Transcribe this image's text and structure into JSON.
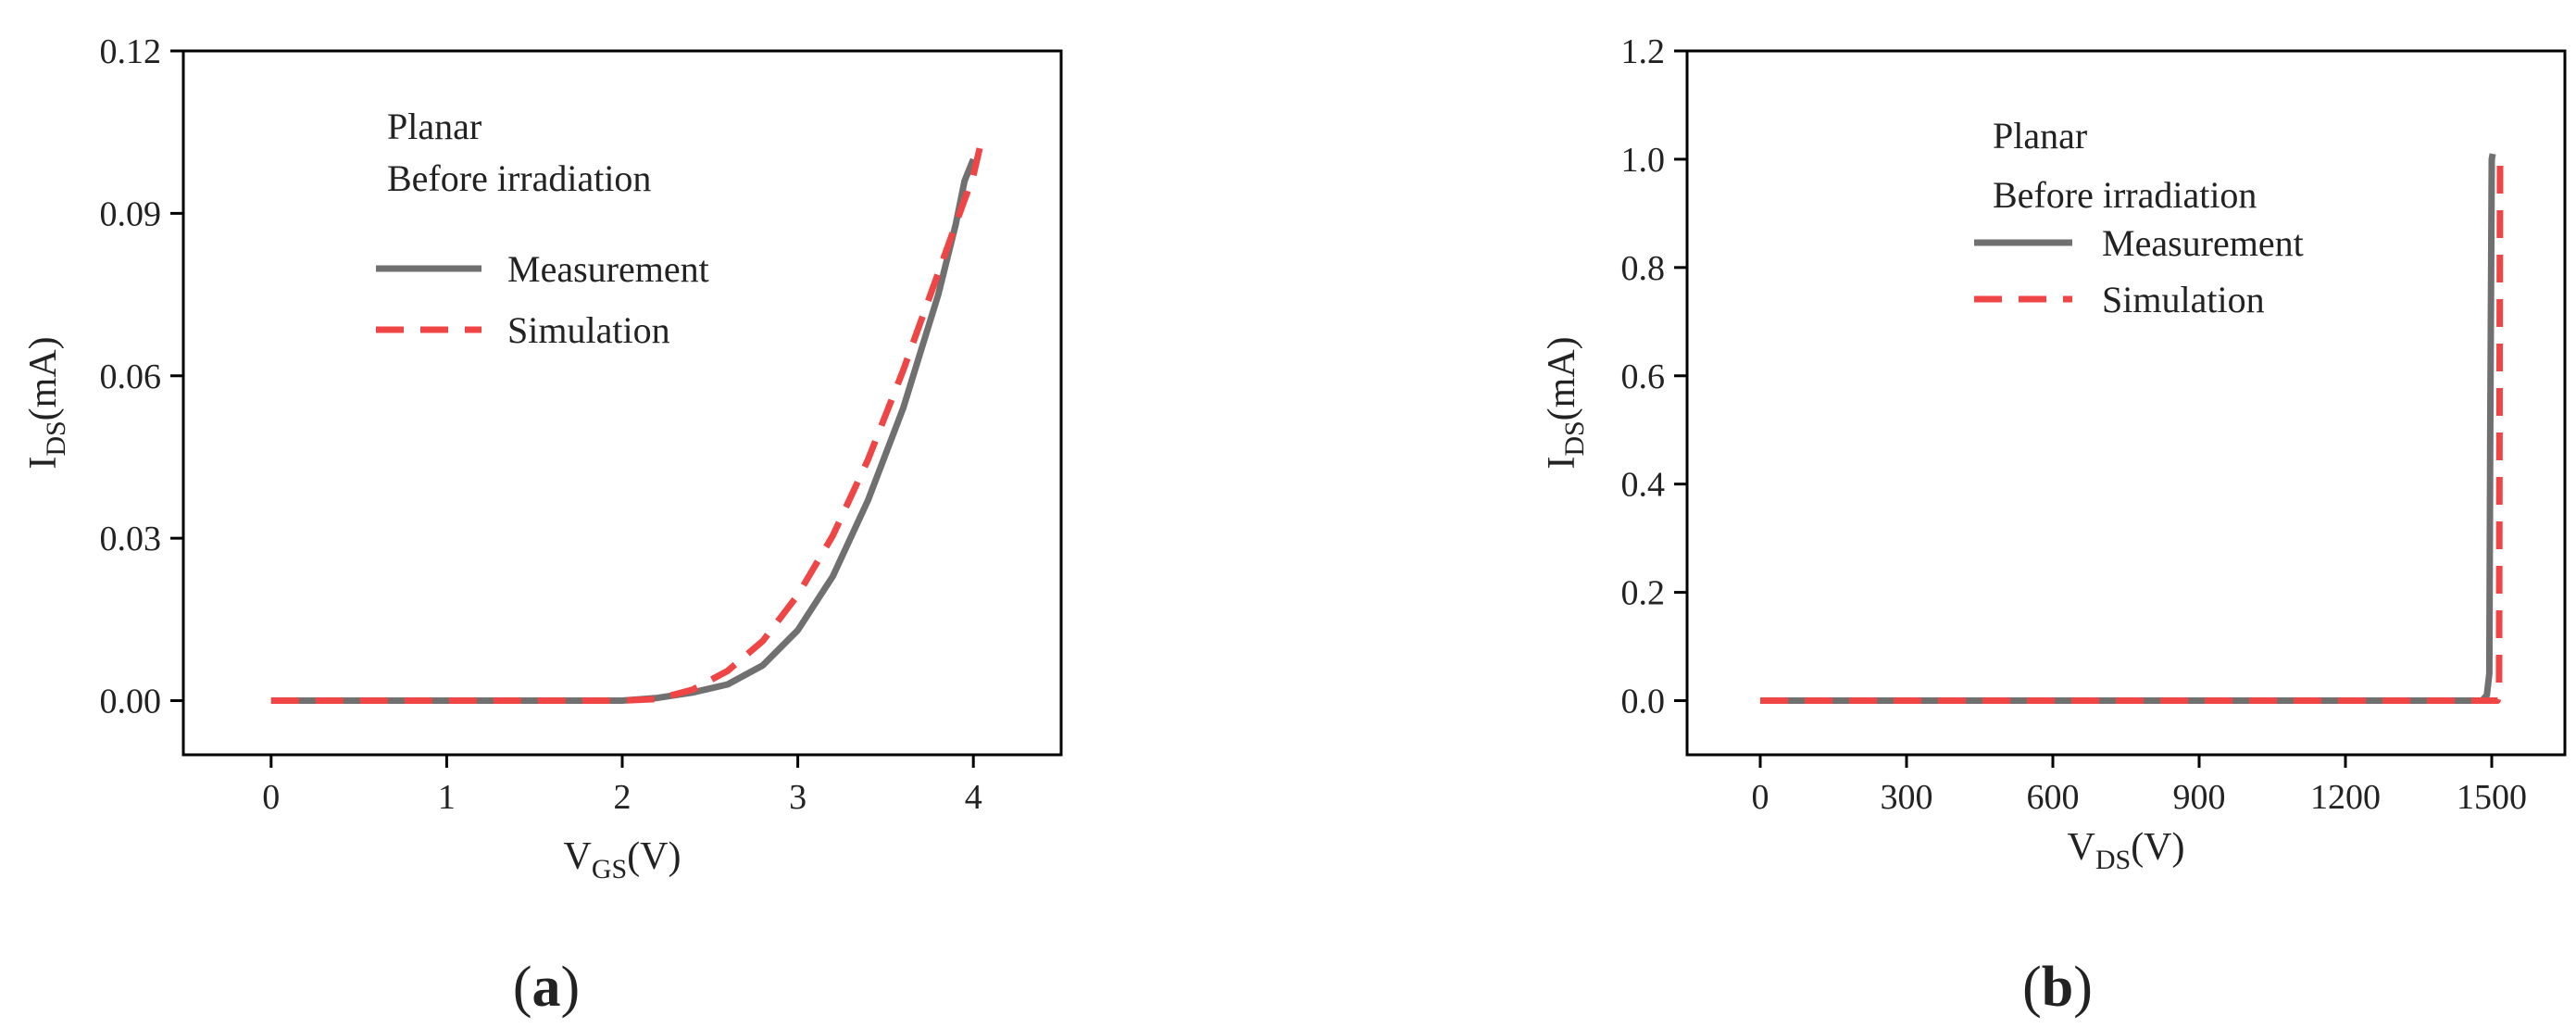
{
  "chart_data": [
    {
      "type": "line",
      "panel_label": "a",
      "xlabel": "V",
      "xlabel_sub": "GS",
      "xlabel_unit": "(V)",
      "ylabel": "I",
      "ylabel_sub": "DS",
      "ylabel_unit": "(mA)",
      "xlim": [
        -0.5,
        4.5
      ],
      "ylim": [
        -0.01,
        0.12
      ],
      "x_ticks": [
        0,
        1,
        2,
        3,
        4
      ],
      "y_ticks": [
        0.0,
        0.03,
        0.06,
        0.09,
        0.12
      ],
      "x_tick_labels": [
        "0",
        "1",
        "2",
        "3",
        "4"
      ],
      "y_tick_labels": [
        "0.00",
        "0.03",
        "0.06",
        "0.09",
        "0.12"
      ],
      "grid": false,
      "annotation_lines": [
        "Planar",
        "Before irradiation"
      ],
      "legend": "upper-left",
      "series": [
        {
          "name": "Measurement",
          "style": "solid",
          "color": "#707070",
          "x": [
            0,
            0.5,
            1.0,
            1.5,
            2.0,
            2.2,
            2.4,
            2.6,
            2.8,
            3.0,
            3.2,
            3.4,
            3.6,
            3.8,
            3.9,
            3.95,
            4.0
          ],
          "y": [
            0,
            0,
            0,
            0,
            0,
            0.0005,
            0.0015,
            0.003,
            0.0065,
            0.013,
            0.023,
            0.037,
            0.054,
            0.075,
            0.088,
            0.096,
            0.1
          ]
        },
        {
          "name": "Simulation",
          "style": "dashed",
          "color": "#f04545",
          "x": [
            0,
            0.5,
            1.0,
            1.5,
            2.0,
            2.2,
            2.4,
            2.6,
            2.8,
            3.0,
            3.2,
            3.4,
            3.6,
            3.8,
            3.9,
            4.0,
            4.05
          ],
          "y": [
            0,
            0,
            0,
            0,
            0,
            0.0003,
            0.002,
            0.0055,
            0.011,
            0.0195,
            0.0305,
            0.0445,
            0.061,
            0.079,
            0.088,
            0.097,
            0.104
          ]
        }
      ]
    },
    {
      "type": "line",
      "panel_label": "b",
      "xlabel": "V",
      "xlabel_sub": "DS",
      "xlabel_unit": "(V)",
      "ylabel": "I",
      "ylabel_sub": "DS",
      "ylabel_unit": "(mA)",
      "xlim": [
        -150,
        1650
      ],
      "ylim": [
        -0.1,
        1.2
      ],
      "x_ticks": [
        0,
        300,
        600,
        900,
        1200,
        1500
      ],
      "y_ticks": [
        0.0,
        0.2,
        0.4,
        0.6,
        0.8,
        1.0,
        1.2
      ],
      "x_tick_labels": [
        "0",
        "300",
        "600",
        "900",
        "1200",
        "1500"
      ],
      "y_tick_labels": [
        "0.0",
        "0.2",
        "0.4",
        "0.6",
        "0.8",
        "1.0",
        "1.2"
      ],
      "grid": false,
      "annotation_lines": [
        "Planar",
        "Before irradiation"
      ],
      "legend": "upper-left",
      "series": [
        {
          "name": "Measurement",
          "style": "solid",
          "color": "#707070",
          "x": [
            0,
            300,
            600,
            900,
            1200,
            1400,
            1480,
            1490,
            1495,
            1497,
            1500,
            1502
          ],
          "y": [
            0,
            0,
            0,
            0,
            0,
            0,
            0,
            0.01,
            0.05,
            0.5,
            1.0,
            1.01
          ]
        },
        {
          "name": "Simulation",
          "style": "dashed",
          "color": "#f04545",
          "x": [
            0,
            300,
            600,
            900,
            1200,
            1400,
            1500,
            1512,
            1515,
            1516,
            1517
          ],
          "y": [
            0,
            0,
            0,
            0,
            0,
            0,
            0,
            0,
            0.01,
            0.5,
            1.01
          ]
        }
      ]
    }
  ]
}
